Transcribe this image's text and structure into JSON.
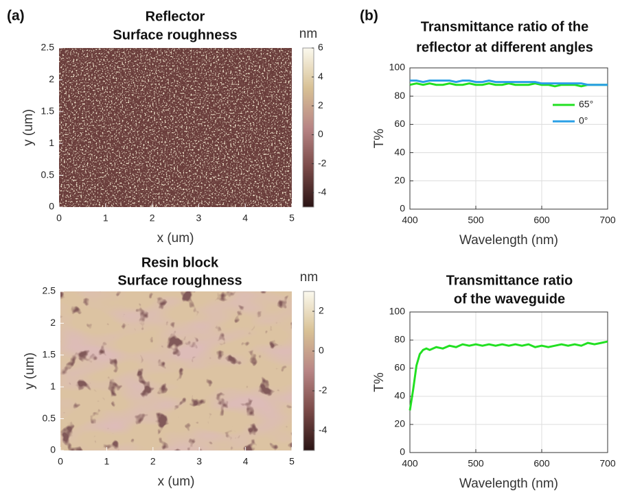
{
  "panel_labels": [
    "(a)",
    "(b)"
  ],
  "chart_data": [
    {
      "type": "heatmap",
      "title": [
        "Reflector",
        "Surface roughness"
      ],
      "xlabel": "x (um)",
      "ylabel": "y (um)",
      "xlim": [
        0,
        5
      ],
      "ylim": [
        0,
        2.5
      ],
      "xticks": [
        0,
        1,
        2,
        3,
        4,
        5
      ],
      "yticks": [
        0,
        0.5,
        1,
        1.5,
        2,
        2.5
      ],
      "colorbar_label": "nm",
      "clim": [
        -5,
        6
      ],
      "cticks": [
        -4,
        -2,
        0,
        2,
        4,
        6
      ],
      "colormap": [
        "#2a1414",
        "#7a4a48",
        "#b88585",
        "#d8c195",
        "#fbf9ee"
      ]
    },
    {
      "type": "line",
      "title": [
        "Transmittance ratio of the",
        "reflector at different angles"
      ],
      "xlabel": "Wavelength (nm)",
      "ylabel": "T%",
      "xlim": [
        400,
        700
      ],
      "ylim": [
        0,
        100
      ],
      "xticks": [
        400,
        500,
        600,
        700
      ],
      "yticks": [
        0,
        20,
        40,
        60,
        80,
        100
      ],
      "grid": true,
      "legend": "upper right",
      "x": [
        400,
        410,
        420,
        430,
        440,
        450,
        460,
        470,
        480,
        490,
        500,
        510,
        520,
        530,
        540,
        550,
        560,
        570,
        580,
        590,
        600,
        610,
        620,
        630,
        640,
        650,
        660,
        670,
        680,
        690,
        700
      ],
      "series": [
        {
          "name": "65°",
          "color": "#22e022",
          "values": [
            88,
            89,
            88,
            89,
            88,
            88,
            89,
            88,
            88,
            89,
            88,
            88,
            89,
            88,
            88,
            89,
            88,
            88,
            88,
            89,
            88,
            88,
            87,
            88,
            88,
            88,
            87,
            88,
            88,
            88,
            88
          ]
        },
        {
          "name": "0°",
          "color": "#2a9fe6",
          "values": [
            91,
            91,
            90,
            91,
            91,
            91,
            91,
            90,
            91,
            91,
            90,
            90,
            91,
            90,
            90,
            90,
            90,
            90,
            90,
            90,
            89,
            89,
            89,
            89,
            89,
            89,
            89,
            88,
            88,
            88,
            88
          ]
        }
      ]
    },
    {
      "type": "heatmap",
      "title": [
        "Resin block",
        "Surface roughness"
      ],
      "xlabel": "x (um)",
      "ylabel": "y (um)",
      "xlim": [
        0,
        5
      ],
      "ylim": [
        0,
        2.5
      ],
      "xticks": [
        0,
        1,
        2,
        3,
        4,
        5
      ],
      "yticks": [
        0,
        0.5,
        1,
        1.5,
        2,
        2.5
      ],
      "colorbar_label": "nm",
      "clim": [
        -5,
        3
      ],
      "cticks": [
        -4,
        -2,
        0,
        2
      ],
      "colormap": [
        "#2a1414",
        "#7a4a48",
        "#b88585",
        "#d8c195",
        "#fbf9ee"
      ]
    },
    {
      "type": "line",
      "title": [
        "Transmittance ratio",
        "of the waveguide"
      ],
      "xlabel": "Wavelength (nm)",
      "ylabel": "T%",
      "xlim": [
        400,
        700
      ],
      "ylim": [
        0,
        100
      ],
      "xticks": [
        400,
        500,
        600,
        700
      ],
      "yticks": [
        0,
        20,
        40,
        60,
        80,
        100
      ],
      "grid": true,
      "x": [
        400,
        405,
        410,
        415,
        420,
        425,
        430,
        440,
        450,
        460,
        470,
        480,
        490,
        500,
        510,
        520,
        530,
        540,
        550,
        560,
        570,
        580,
        590,
        600,
        610,
        620,
        630,
        640,
        650,
        660,
        670,
        680,
        690,
        700
      ],
      "series": [
        {
          "color": "#22e022",
          "values": [
            30,
            45,
            62,
            70,
            73,
            74,
            73,
            75,
            74,
            76,
            75,
            77,
            76,
            77,
            76,
            77,
            76,
            77,
            76,
            77,
            76,
            77,
            75,
            76,
            75,
            76,
            77,
            76,
            77,
            76,
            78,
            77,
            78,
            79
          ]
        }
      ]
    }
  ]
}
